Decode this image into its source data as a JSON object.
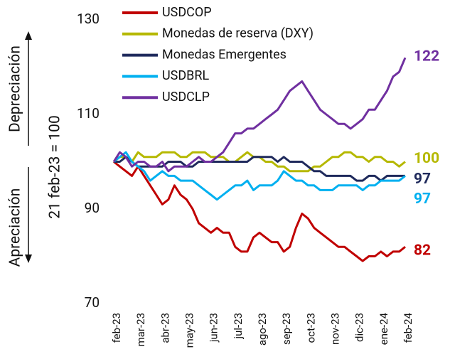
{
  "chart_data": {
    "type": "line",
    "y_label": "21 feb-23 = 100",
    "annotations": [
      "Depreciación",
      "Apreciación"
    ],
    "categories": [
      "feb-23",
      null,
      null,
      null,
      "mar-23",
      null,
      null,
      null,
      "abr-23",
      null,
      null,
      null,
      "may-23",
      null,
      null,
      null,
      "jun-23",
      null,
      null,
      null,
      "jul-23",
      null,
      null,
      null,
      "ago-23",
      null,
      null,
      null,
      "sep-23",
      null,
      null,
      null,
      "oct-23",
      null,
      null,
      null,
      "nov-23",
      null,
      null,
      null,
      "dic-23",
      null,
      null,
      null,
      "ene-24",
      null,
      null,
      null,
      "feb-24"
    ],
    "ylim": [
      70,
      130
    ],
    "yticks": [
      70,
      90,
      110,
      130
    ],
    "series": [
      {
        "name": "USDCOP",
        "color": "#c00000",
        "values": [
          100,
          99,
          98,
          97,
          99,
          97,
          95,
          93,
          91,
          92,
          95,
          93,
          92,
          90,
          87,
          86,
          85,
          86,
          85,
          85,
          82,
          81,
          81,
          84,
          85,
          84,
          83,
          83,
          81,
          82,
          86,
          89,
          88,
          86,
          85,
          84,
          83,
          82,
          82,
          81,
          80,
          79,
          80,
          80,
          81,
          80,
          81,
          81,
          82
        ]
      },
      {
        "name": "Monedas de reserva (DXY)",
        "color": "#b5b800",
        "values": [
          100,
          101,
          101,
          100,
          102,
          101,
          101,
          101,
          102,
          102,
          102,
          101,
          101,
          102,
          102,
          102,
          101,
          101,
          101,
          100,
          100,
          101,
          102,
          101,
          101,
          100,
          100,
          99,
          99,
          98,
          98,
          98,
          98,
          99,
          99,
          100,
          101,
          101,
          102,
          102,
          101,
          101,
          100,
          101,
          101,
          100,
          100,
          99,
          100
        ]
      },
      {
        "name": "Monedas Emergentes",
        "color": "#1f2a5c",
        "values": [
          100,
          100,
          101,
          100,
          99,
          99,
          99,
          99,
          99,
          100,
          100,
          100,
          99,
          99,
          100,
          100,
          100,
          100,
          100,
          100,
          100,
          100,
          100,
          101,
          101,
          101,
          101,
          100,
          101,
          100,
          100,
          100,
          99,
          98,
          98,
          97,
          97,
          97,
          97,
          97,
          96,
          96,
          97,
          97,
          96,
          97,
          97,
          97,
          97
        ]
      },
      {
        "name": "USDBRL",
        "color": "#00b0f0",
        "values": [
          100,
          101,
          102,
          100,
          99,
          98,
          96,
          97,
          98,
          97,
          97,
          96,
          96,
          96,
          95,
          94,
          93,
          92,
          93,
          94,
          95,
          95,
          96,
          94,
          95,
          95,
          95,
          96,
          98,
          97,
          96,
          96,
          95,
          95,
          94,
          94,
          94,
          95,
          95,
          95,
          95,
          94,
          95,
          95,
          96,
          96,
          96,
          96,
          97
        ]
      },
      {
        "name": "USDCLP",
        "color": "#7030a0",
        "values": [
          100,
          102,
          101,
          99,
          100,
          100,
          99,
          99,
          100,
          98,
          99,
          99,
          99,
          100,
          101,
          100,
          100,
          101,
          102,
          104,
          106,
          106,
          107,
          107,
          108,
          109,
          110,
          111,
          113,
          115,
          116,
          117,
          115,
          113,
          111,
          110,
          109,
          108,
          108,
          107,
          108,
          109,
          111,
          111,
          113,
          115,
          118,
          119,
          122
        ]
      }
    ]
  }
}
